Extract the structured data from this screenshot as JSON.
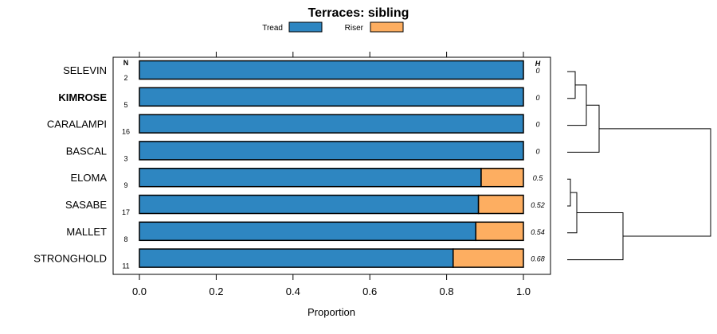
{
  "chart_data": {
    "type": "bar",
    "orientation": "horizontal",
    "stacked": true,
    "title": "Terraces: sibling",
    "xlabel": "Proportion",
    "ylabel": "",
    "xlim": [
      0,
      1
    ],
    "xticks": [
      0.0,
      0.2,
      0.4,
      0.6,
      0.8,
      1.0
    ],
    "xtick_labels": [
      "0.0",
      "0.2",
      "0.4",
      "0.6",
      "0.8",
      "1.0"
    ],
    "legend": {
      "position": "top-center",
      "entries": [
        {
          "name": "Tread",
          "color": "#2e86c1"
        },
        {
          "name": "Riser",
          "color": "#fdae61"
        }
      ]
    },
    "n_header": "N",
    "h_header": "H",
    "categories": [
      "SELEVIN",
      "KIMROSE",
      "CARALAMPI",
      "BASCAL",
      "ELOMA",
      "SASABE",
      "MALLET",
      "STRONGHOLD"
    ],
    "highlighted_category": "KIMROSE",
    "n_values": [
      "2",
      "5",
      "16",
      "3",
      "9",
      "17",
      "8",
      "11"
    ],
    "h_values": [
      "0",
      "0",
      "0",
      "0",
      "0.5",
      "0.52",
      "0.54",
      "0.68"
    ],
    "series": [
      {
        "name": "Tread",
        "values": [
          1.0,
          1.0,
          1.0,
          1.0,
          0.89,
          0.883,
          0.876,
          0.817
        ]
      },
      {
        "name": "Riser",
        "values": [
          0.0,
          0.0,
          0.0,
          0.0,
          0.11,
          0.117,
          0.124,
          0.183
        ]
      }
    ],
    "dendrogram": {
      "description": "hierarchical clustering of categories",
      "merges": [
        {
          "left": "SELEVIN",
          "right": "KIMROSE",
          "height": 0.05
        },
        {
          "left": "SELEVIN+KIMROSE",
          "right": "CARALAMPI",
          "height": 0.12
        },
        {
          "left": "SELEVIN+KIMROSE+CARALAMPI",
          "right": "BASCAL",
          "height": 0.2
        },
        {
          "left": "ELOMA",
          "right": "SASABE",
          "height": 0.02
        },
        {
          "left": "ELOMA+SASABE",
          "right": "MALLET",
          "height": 0.06
        },
        {
          "left": "ELOMA+SASABE+MALLET",
          "right": "STRONGHOLD",
          "height": 0.35
        },
        {
          "left": "SELEVIN+KIMROSE+CARALAMPI+BASCAL",
          "right": "ELOMA+SASABE+MALLET+STRONGHOLD",
          "height": 0.9
        }
      ]
    }
  }
}
